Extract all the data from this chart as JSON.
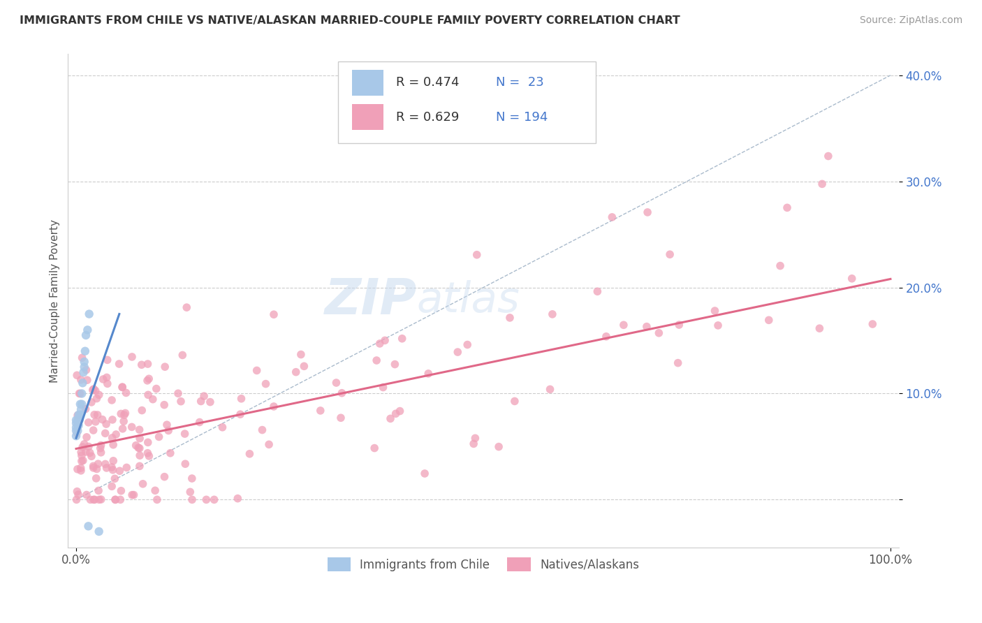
{
  "title": "IMMIGRANTS FROM CHILE VS NATIVE/ALASKAN MARRIED-COUPLE FAMILY POVERTY CORRELATION CHART",
  "source": "Source: ZipAtlas.com",
  "ylabel": "Married-Couple Family Poverty",
  "color_blue": "#a8c8e8",
  "color_pink": "#f0a0b8",
  "line_blue": "#5588cc",
  "line_pink": "#e06888",
  "dashed_color": "#aabbcc",
  "legend_r1": "R = 0.474",
  "legend_n1": "N =  23",
  "legend_r2": "R = 0.629",
  "legend_n2": "N = 194",
  "legend_label1": "Immigrants from Chile",
  "legend_label2": "Natives/Alaskans",
  "watermark": "ZIPAtlas",
  "xlim": [
    -0.01,
    1.01
  ],
  "ylim": [
    -0.045,
    0.42
  ],
  "blue_line_x": [
    0.0,
    0.053
  ],
  "blue_line_y": [
    0.058,
    0.175
  ],
  "pink_line_x": [
    0.0,
    1.0
  ],
  "pink_line_y": [
    0.048,
    0.208
  ],
  "dashed_line_x": [
    0.0,
    1.0
  ],
  "dashed_line_y": [
    0.0,
    0.4
  ]
}
